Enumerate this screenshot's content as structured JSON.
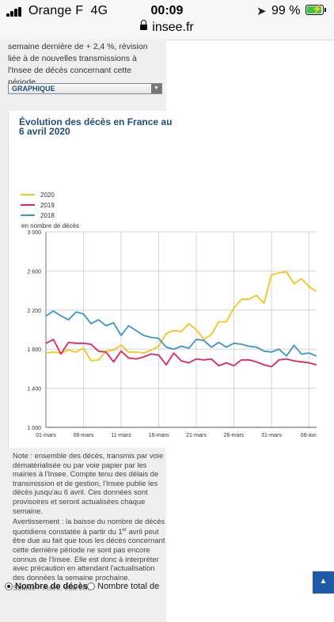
{
  "status_bar": {
    "carrier": "Orange F",
    "network": "4G",
    "time": "00:09",
    "battery": "99 %",
    "battery_level": 0.99,
    "url": "insee.fr"
  },
  "intro": {
    "text": "semaine dernière de + 2,4 %, révision liée à de nouvelles transmissions à l'Insee de décès concernant cette période."
  },
  "view_select": {
    "selected": "GRAPHIQUE"
  },
  "chart": {
    "title": "Évolution des décès en France au 6 avril 2020",
    "yaxis_caption": "en nombre de décès",
    "legend": [
      "2020",
      "2019",
      "2018"
    ]
  },
  "notes": {
    "note": "Note : ensemble des décès, transmis par voie dématérialisée ou par voie papier par les mairies à l'Insee. Compte tenu des délais de transmission et de gestion, l'Insee publie les décès jusqu'au 6 avril. Ces données sont provisoires et seront actualisées chaque semaine.",
    "warning_before": "Avertissement : la baisse du nombre de décès quotidiens constatée à partir du 1",
    "warning_sup": "er",
    "warning_after": " avril peut être due au fait que tous les décès concernant cette dernière période ne sont pas encore connus de l'Insee. Elle est donc à interpréter avec précaution en attendant l'actualisation des données la semaine prochaine.",
    "source": "Source : Insee, état civil"
  },
  "radios": {
    "option1": "Nombre de décès",
    "option2": "Nombre total de"
  },
  "colors": {
    "y2020": "#f5c518",
    "y2019": "#e0245e",
    "y2018": "#3a96c9",
    "title": "#1f4e79"
  },
  "chart_data": {
    "type": "line",
    "title": "Évolution des décès en France au 6 avril 2020",
    "ylabel": "en nombre de décès",
    "ylim": [
      1000,
      3000
    ],
    "yticks": [
      1000,
      1400,
      1800,
      2200,
      2600,
      3000
    ],
    "ytick_labels": [
      "1 000",
      "1 400",
      "1 800",
      "2 200",
      "2 600",
      "3 000"
    ],
    "xtick_labels": [
      "01-mars",
      "06-mars",
      "11-mars",
      "16-mars",
      "21-mars",
      "26-mars",
      "31-mars",
      "06-avr."
    ],
    "x": [
      "01-mars",
      "02-mars",
      "03-mars",
      "04-mars",
      "05-mars",
      "06-mars",
      "07-mars",
      "08-mars",
      "09-mars",
      "10-mars",
      "11-mars",
      "12-mars",
      "13-mars",
      "14-mars",
      "15-mars",
      "16-mars",
      "17-mars",
      "18-mars",
      "19-mars",
      "20-mars",
      "21-mars",
      "22-mars",
      "23-mars",
      "24-mars",
      "25-mars",
      "26-mars",
      "27-mars",
      "28-mars",
      "29-mars",
      "30-mars",
      "31-mars",
      "01-avr.",
      "02-avr.",
      "03-avr.",
      "04-avr.",
      "05-avr.",
      "06-avr."
    ],
    "grid": true,
    "legend_position": "top-left",
    "series": [
      {
        "name": "2020",
        "values": [
          1760,
          1770,
          1760,
          1790,
          1770,
          1810,
          1680,
          1690,
          1780,
          1790,
          1840,
          1770,
          1770,
          1760,
          1790,
          1830,
          1960,
          1990,
          1980,
          2060,
          2000,
          1900,
          1950,
          2080,
          2080,
          2220,
          2310,
          2310,
          2350,
          2270,
          2560,
          2580,
          2590,
          2470,
          2520,
          2440,
          2390
        ]
      },
      {
        "name": "2019",
        "values": [
          1860,
          1900,
          1750,
          1870,
          1860,
          1860,
          1850,
          1780,
          1770,
          1670,
          1780,
          1710,
          1700,
          1720,
          1750,
          1740,
          1640,
          1760,
          1680,
          1660,
          1700,
          1690,
          1700,
          1630,
          1660,
          1630,
          1690,
          1690,
          1670,
          1640,
          1620,
          1690,
          1700,
          1680,
          1670,
          1660,
          1640
        ]
      },
      {
        "name": "2018",
        "values": [
          2140,
          2190,
          2140,
          2100,
          2180,
          2160,
          2060,
          2100,
          2040,
          2070,
          1940,
          2040,
          1990,
          1940,
          1920,
          1910,
          1820,
          1800,
          1830,
          1810,
          1900,
          1890,
          1820,
          1870,
          1820,
          1860,
          1850,
          1830,
          1820,
          1780,
          1770,
          1800,
          1730,
          1840,
          1750,
          1760,
          1730
        ]
      }
    ]
  }
}
